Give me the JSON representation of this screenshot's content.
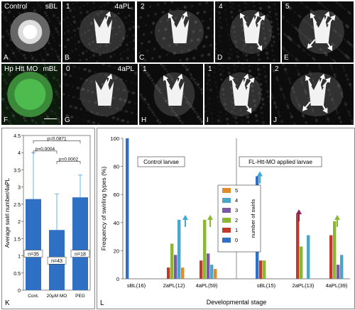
{
  "colors": {
    "bar0": "#2f6fc4",
    "bar1": "#c0392b",
    "bar2": "#8ab833",
    "bar3": "#7a5aa6",
    "bar4": "#4aa6c9",
    "bar5": "#e08a2c",
    "swirl_arrow_l": "#3fa8d8",
    "swirl_arrow_m": "#8b2252",
    "swirl_arrow_r": "#8ab833"
  },
  "panels_top": [
    {
      "letter": "A",
      "num": "",
      "tag": "sBL",
      "title": "Control"
    },
    {
      "letter": "B",
      "num": "1",
      "tag": "4aPL",
      "title": ""
    },
    {
      "letter": "C",
      "num": "2",
      "tag": "",
      "title": ""
    },
    {
      "letter": "D",
      "num": "4",
      "tag": "",
      "title": ""
    },
    {
      "letter": "E",
      "num": "5",
      "tag": "",
      "title": ""
    }
  ],
  "panels_mid": [
    {
      "letter": "F",
      "num": "",
      "tag": "mBL",
      "title": "Hp Htt MO"
    },
    {
      "letter": "G",
      "num": "0",
      "tag": "4aPL",
      "title": ""
    },
    {
      "letter": "H",
      "num": "1",
      "tag": "",
      "title": ""
    },
    {
      "letter": "I",
      "num": "1",
      "tag": "",
      "title": ""
    },
    {
      "letter": "J",
      "num": "2",
      "tag": "",
      "title": ""
    }
  ],
  "chart_k": {
    "letter": "K",
    "ylabel": "Average swirl number/4aPL",
    "categories": [
      "Cont.",
      "20μM MO",
      "PEG"
    ],
    "values": [
      2.65,
      1.75,
      2.7
    ],
    "errors": [
      1.35,
      1.05,
      0.65
    ],
    "n_labels": [
      "n=35",
      "n=43",
      "n=18"
    ],
    "p_labels": [
      "p=0.0871",
      "p=0.0004",
      "p=0.0002"
    ],
    "yticks": [
      "0",
      "0.5",
      "1",
      "1.5",
      "2",
      "2.5",
      "3",
      "3.5",
      "4",
      "4.5"
    ],
    "ylim": [
      0,
      4.5
    ]
  },
  "chart_data": {
    "type": "bar",
    "letter": "L",
    "ylabel": "Frequency of swirling types (%)",
    "xlabel": "Developmental stage",
    "yticks": [
      "0",
      "20",
      "40",
      "60",
      "80",
      "100"
    ],
    "ylim": [
      0,
      100
    ],
    "group_titles": [
      "Control larvae",
      "FL-Htt-MO applied larvae"
    ],
    "categories": [
      "sBL(16)",
      "2aPL(12)",
      "4aPL(59)",
      "sBL(15)",
      "2aPL(13)",
      "4aPL(39)"
    ],
    "legend_title": "number of swirls",
    "series": [
      {
        "name": "0",
        "values": [
          100,
          0,
          0,
          73,
          0,
          0
        ]
      },
      {
        "name": "1",
        "values": [
          0,
          8,
          13,
          13,
          46,
          31
        ]
      },
      {
        "name": "2",
        "values": [
          0,
          25,
          42,
          13,
          23,
          41
        ]
      },
      {
        "name": "3",
        "values": [
          0,
          17,
          18,
          0,
          0,
          10
        ]
      },
      {
        "name": "4",
        "values": [
          0,
          42,
          10,
          0,
          31,
          17
        ]
      },
      {
        "name": "5",
        "values": [
          0,
          8,
          7,
          0,
          0,
          0
        ]
      }
    ]
  }
}
